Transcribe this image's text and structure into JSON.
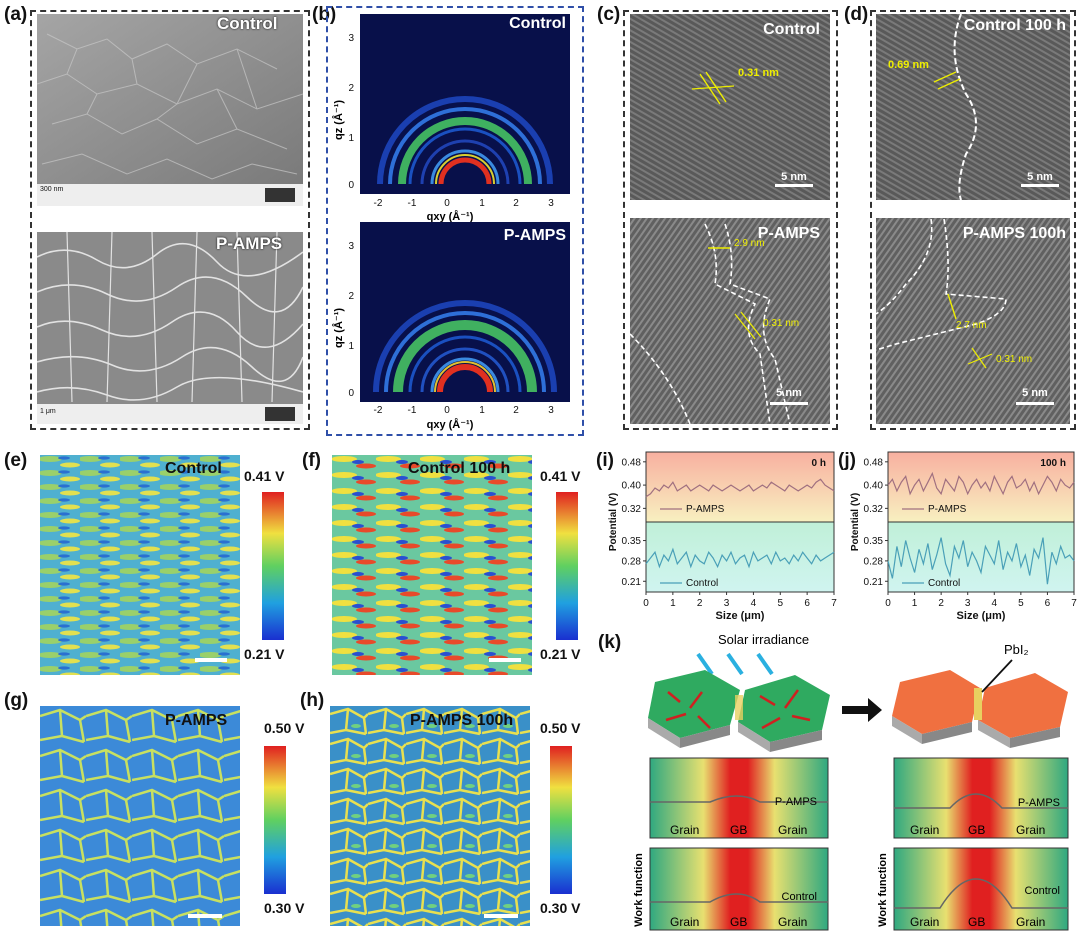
{
  "panels": {
    "a": {
      "letter": "(a)",
      "top_label": "Control",
      "bottom_label": "P-AMPS",
      "scale_top": "300 nm",
      "scale_bottom": "1 μm"
    },
    "b": {
      "letter": "(b)",
      "top_label": "Control",
      "bottom_label": "P-AMPS",
      "xlabel": "qxy (Å⁻¹)",
      "ylabel": "qz (Å⁻¹)",
      "xticks": [
        "-2",
        "-1",
        "0",
        "1",
        "2",
        "3"
      ],
      "yticks": [
        "0",
        "1",
        "2",
        "3"
      ]
    },
    "c": {
      "letter": "(c)",
      "top_label": "Control",
      "bottom_label": "P-AMPS",
      "top_spacing": "0.31 nm",
      "bottom_spacing": "0.31 nm",
      "bottom_width": "2.9 nm",
      "scale": "5 nm"
    },
    "d": {
      "letter": "(d)",
      "top_label": "Control 100 h",
      "bottom_label": "P-AMPS 100h",
      "top_spacing": "0.69 nm",
      "bottom_width": "2.7 nm",
      "bottom_spacing": "0.31 nm",
      "scale": "5 nm"
    },
    "e": {
      "letter": "(e)",
      "label": "Control",
      "cbar_top": "0.41 V",
      "cbar_bottom": "0.21 V"
    },
    "f": {
      "letter": "(f)",
      "label": "Control  100 h",
      "cbar_top": "0.41 V",
      "cbar_bottom": "0.21 V"
    },
    "g": {
      "letter": "(g)",
      "label": "P-AMPS",
      "cbar_top": "0.50 V",
      "cbar_bottom": "0.30 V"
    },
    "h": {
      "letter": "(h)",
      "label": "P-AMPS 100h",
      "cbar_top": "0.50 V",
      "cbar_bottom": "0.30 V"
    },
    "i": {
      "letter": "(i)",
      "time": "0 h"
    },
    "j": {
      "letter": "(j)",
      "time": "100 h"
    },
    "k": {
      "letter": "(k)",
      "solar": "Solar irradiance",
      "pbi": "PbI₂",
      "wf_label": "Work function",
      "grain": "Grain",
      "gb": "GB",
      "pamps": "P-AMPS",
      "control": "Control"
    }
  },
  "chart_data": [
    {
      "type": "line",
      "id": "i",
      "title": "0 h",
      "xlabel": "Size (μm)",
      "ylabel": "Potential (V)",
      "xlim": [
        0,
        7
      ],
      "xticks": [
        "0",
        "1",
        "2",
        "3",
        "4",
        "5",
        "6",
        "7"
      ],
      "top": {
        "yticks": [
          "0.48",
          "0.40",
          "0.32"
        ],
        "ylim": [
          0.28,
          0.5
        ],
        "series_name": "P-AMPS",
        "color": "#a07080",
        "values": [
          0.36,
          0.37,
          0.39,
          0.38,
          0.4,
          0.39,
          0.41,
          0.38,
          0.39,
          0.4,
          0.38,
          0.39,
          0.4,
          0.39,
          0.38,
          0.4,
          0.39,
          0.38,
          0.39,
          0.4,
          0.39,
          0.38,
          0.39,
          0.4,
          0.38,
          0.39,
          0.4,
          0.39,
          0.41,
          0.4,
          0.39,
          0.38,
          0.4,
          0.39,
          0.38,
          0.39,
          0.4,
          0.39,
          0.41,
          0.42,
          0.4,
          0.39,
          0.38
        ]
      },
      "bottom": {
        "yticks": [
          "0.35",
          "0.28",
          "0.21"
        ],
        "ylim": [
          0.18,
          0.4
        ],
        "series_name": "Control",
        "color": "#4aa0b8",
        "values": [
          0.27,
          0.29,
          0.31,
          0.26,
          0.3,
          0.28,
          0.32,
          0.27,
          0.29,
          0.31,
          0.26,
          0.3,
          0.28,
          0.27,
          0.31,
          0.29,
          0.26,
          0.3,
          0.28,
          0.31,
          0.27,
          0.29,
          0.3,
          0.26,
          0.31,
          0.28,
          0.29,
          0.3,
          0.27,
          0.31,
          0.28,
          0.29,
          0.27,
          0.3,
          0.28,
          0.31,
          0.29,
          0.27,
          0.3,
          0.28,
          0.29,
          0.3,
          0.31
        ]
      }
    },
    {
      "type": "line",
      "id": "j",
      "title": "100 h",
      "xlabel": "Size (μm)",
      "ylabel": "Potential (V)",
      "xlim": [
        0,
        7
      ],
      "xticks": [
        "0",
        "1",
        "2",
        "3",
        "4",
        "5",
        "6",
        "7"
      ],
      "top": {
        "yticks": [
          "0.48",
          "0.40",
          "0.32"
        ],
        "ylim": [
          0.28,
          0.5
        ],
        "series_name": "P-AMPS",
        "color": "#a07080",
        "values": [
          0.4,
          0.42,
          0.38,
          0.41,
          0.43,
          0.37,
          0.4,
          0.42,
          0.38,
          0.41,
          0.44,
          0.39,
          0.37,
          0.42,
          0.4,
          0.38,
          0.43,
          0.41,
          0.37,
          0.4,
          0.42,
          0.39,
          0.41,
          0.38,
          0.43,
          0.4,
          0.37,
          0.41,
          0.43,
          0.39,
          0.4,
          0.42,
          0.38,
          0.41,
          0.37,
          0.4,
          0.43,
          0.41,
          0.38,
          0.42,
          0.4,
          0.39,
          0.41
        ]
      },
      "bottom": {
        "yticks": [
          "0.35",
          "0.28",
          "0.21"
        ],
        "ylim": [
          0.18,
          0.4
        ],
        "series_name": "Control",
        "color": "#4aa0b8",
        "values": [
          0.28,
          0.22,
          0.33,
          0.26,
          0.35,
          0.29,
          0.24,
          0.32,
          0.27,
          0.34,
          0.25,
          0.3,
          0.36,
          0.27,
          0.23,
          0.33,
          0.29,
          0.35,
          0.26,
          0.31,
          0.28,
          0.24,
          0.33,
          0.3,
          0.27,
          0.35,
          0.25,
          0.31,
          0.28,
          0.34,
          0.26,
          0.3,
          0.23,
          0.32,
          0.29,
          0.36,
          0.2,
          0.31,
          0.27,
          0.33,
          0.29,
          0.3,
          0.28
        ]
      }
    }
  ]
}
